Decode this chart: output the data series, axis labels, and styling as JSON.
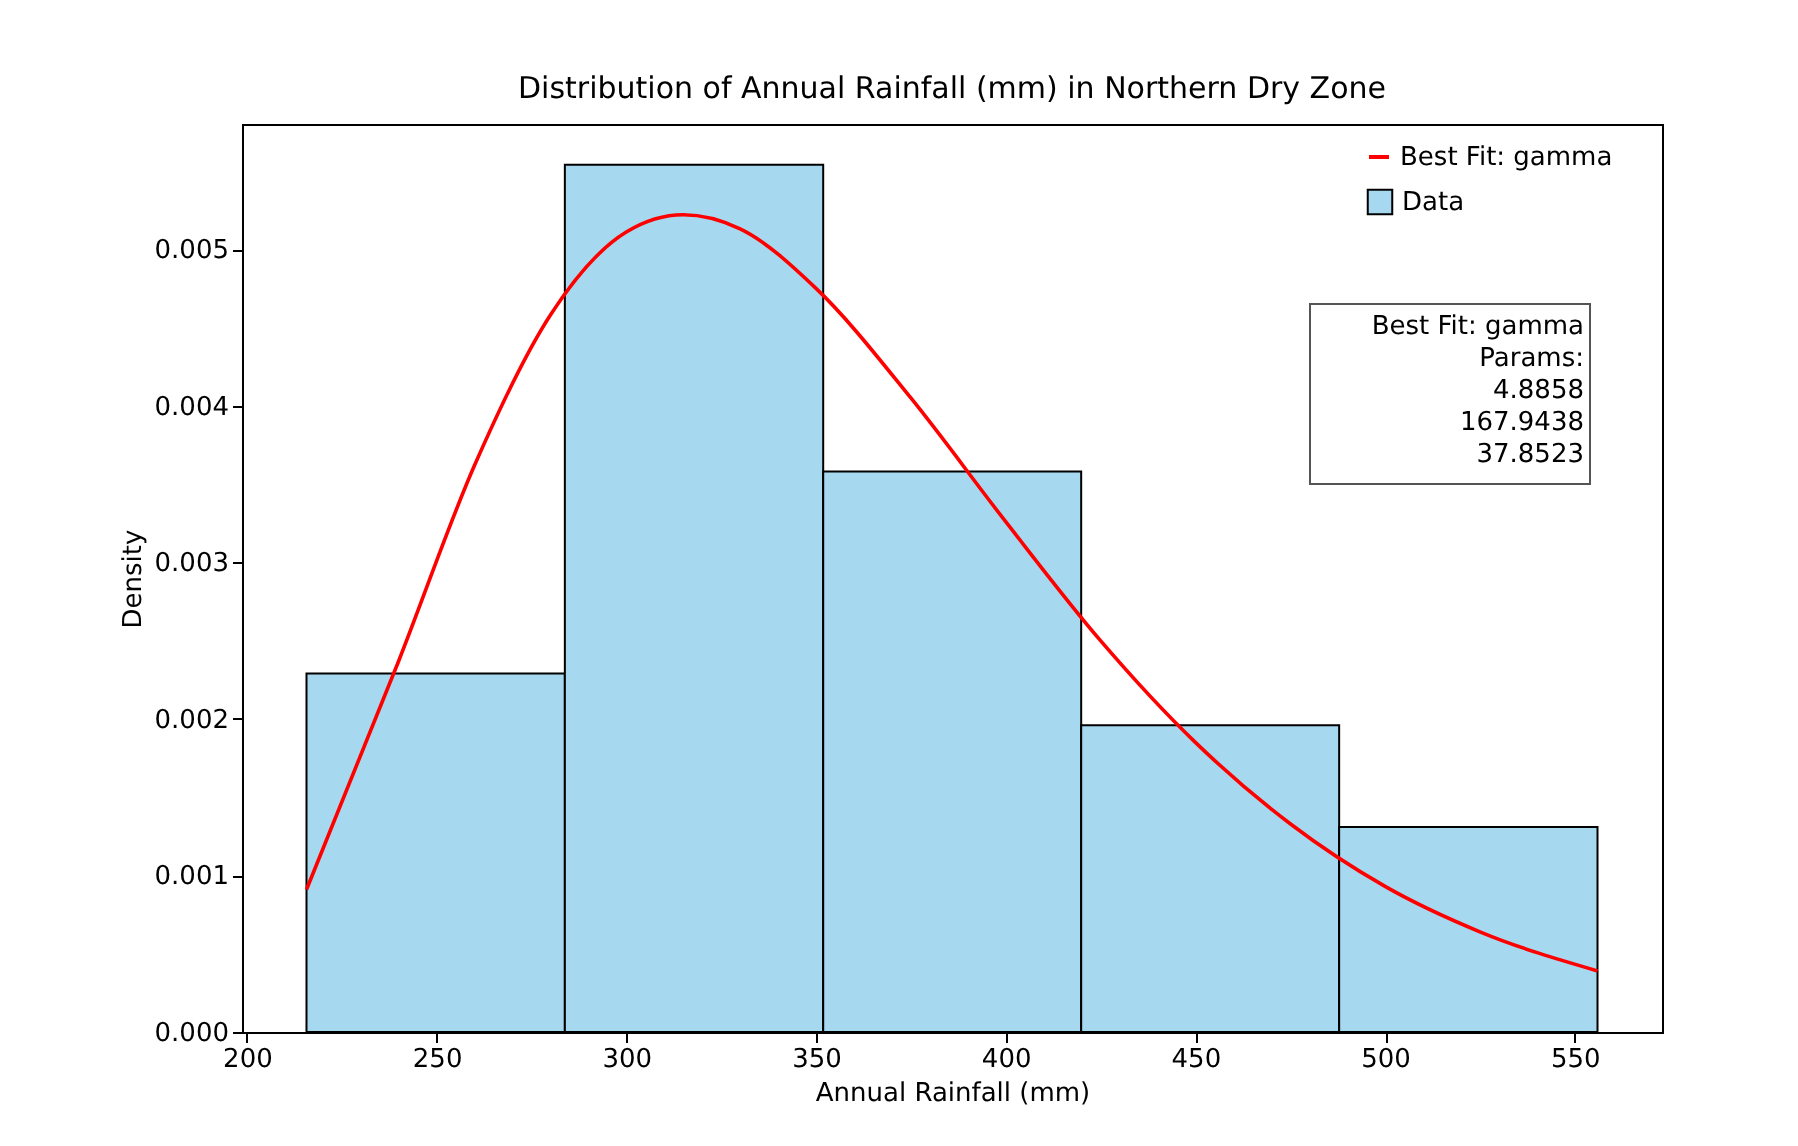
{
  "chart_data": {
    "type": "histogram",
    "title": "Distribution of Annual Rainfall (mm) in Northern Dry Zone",
    "xlabel": "Annual Rainfall (mm)",
    "ylabel": "Density",
    "bins": [
      215.7,
      283.8,
      351.9,
      419.9,
      487.9,
      556.0
    ],
    "series": [
      {
        "name": "Best Fit: gamma",
        "type": "line",
        "color": "#ff0000",
        "x": [
          215.7,
          240,
          260,
          280,
          300,
          315,
          330,
          350,
          375,
          400,
          425,
          450,
          475,
          500,
          525,
          556
        ],
        "values": [
          0.00091,
          0.00237,
          0.00362,
          0.00458,
          0.00511,
          0.00522,
          0.00513,
          0.00475,
          0.00405,
          0.00326,
          0.0025,
          0.00185,
          0.00133,
          0.00093,
          0.00064,
          0.00039
        ]
      },
      {
        "name": "Data",
        "color": "#a6d9ef",
        "values": [
          0.00229,
          0.00554,
          0.00358,
          0.00196,
          0.00131
        ]
      }
    ],
    "xlim": [
      198.7,
      573.0
    ],
    "xticks": [
      200,
      250,
      300,
      350,
      400,
      450,
      500,
      550
    ],
    "ylim": [
      0,
      0.0058
    ],
    "yticks": [
      {
        "value": 0,
        "label": "0.000"
      },
      0.001,
      0.002,
      0.003,
      0.004,
      0.005
    ],
    "grid": false,
    "legend": "top right",
    "annotations": [
      "Best Fit: gamma\nParams:\n4.8858\n167.9438\n37.8523"
    ]
  }
}
